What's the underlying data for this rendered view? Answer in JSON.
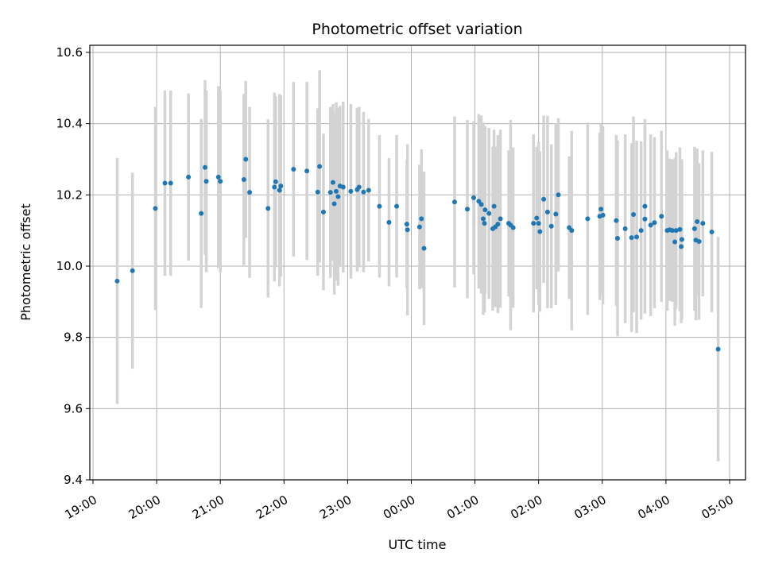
{
  "chart_data": {
    "type": "scatter",
    "title": "Photometric offset variation",
    "xlabel": "UTC time",
    "ylabel": "Photometric offset",
    "xlim": [
      -0.05,
      10.25
    ],
    "ylim": [
      9.4,
      10.62
    ],
    "grid": true,
    "x_unit": "hours since 19:00 UTC",
    "x_ticks": [
      {
        "value": 0,
        "label": "19:00"
      },
      {
        "value": 1,
        "label": "20:00"
      },
      {
        "value": 2,
        "label": "21:00"
      },
      {
        "value": 3,
        "label": "22:00"
      },
      {
        "value": 4,
        "label": "23:00"
      },
      {
        "value": 5,
        "label": "00:00"
      },
      {
        "value": 6,
        "label": "01:00"
      },
      {
        "value": 7,
        "label": "02:00"
      },
      {
        "value": 8,
        "label": "03:00"
      },
      {
        "value": 9,
        "label": "04:00"
      },
      {
        "value": 10,
        "label": "05:00"
      }
    ],
    "y_ticks": [
      {
        "value": 9.4,
        "label": "9.4"
      },
      {
        "value": 9.6,
        "label": "9.6"
      },
      {
        "value": 9.8,
        "label": "9.8"
      },
      {
        "value": 10.0,
        "label": "10.0"
      },
      {
        "value": 10.2,
        "label": "10.2"
      },
      {
        "value": 10.4,
        "label": "10.4"
      },
      {
        "value": 10.6,
        "label": "10.6"
      }
    ],
    "colors": {
      "points": "#1f77b4",
      "errorbars": "#d3d3d3",
      "grid": "#b0b0b0",
      "axes": "#000000"
    },
    "series": [
      {
        "name": "offset",
        "points": [
          [
            0.38,
            9.958,
            0.345
          ],
          [
            0.62,
            9.987,
            0.275
          ],
          [
            0.98,
            10.162,
            0.285
          ],
          [
            1.13,
            10.233,
            0.26
          ],
          [
            1.22,
            10.233,
            0.26
          ],
          [
            1.5,
            10.25,
            0.235
          ],
          [
            1.7,
            10.148,
            0.265
          ],
          [
            1.76,
            10.277,
            0.245
          ],
          [
            1.78,
            10.238,
            0.255
          ],
          [
            1.97,
            10.25,
            0.255
          ],
          [
            2.0,
            10.238,
            0.255
          ],
          [
            2.37,
            10.243,
            0.24
          ],
          [
            2.4,
            10.3,
            0.22
          ],
          [
            2.46,
            10.207,
            0.24
          ],
          [
            2.75,
            10.162,
            0.25
          ],
          [
            2.85,
            10.222,
            0.265
          ],
          [
            2.87,
            10.237,
            0.24
          ],
          [
            2.93,
            10.213,
            0.27
          ],
          [
            2.95,
            10.225,
            0.255
          ],
          [
            3.15,
            10.272,
            0.245
          ],
          [
            3.36,
            10.267,
            0.25
          ],
          [
            3.53,
            10.208,
            0.235
          ],
          [
            3.56,
            10.28,
            0.27
          ],
          [
            3.62,
            10.152,
            0.22
          ],
          [
            3.73,
            10.207,
            0.24
          ],
          [
            3.77,
            10.235,
            0.22
          ],
          [
            3.79,
            10.175,
            0.255
          ],
          [
            3.82,
            10.21,
            0.25
          ],
          [
            3.85,
            10.195,
            0.25
          ],
          [
            3.88,
            10.225,
            0.225
          ],
          [
            3.93,
            10.222,
            0.24
          ],
          [
            4.05,
            10.21,
            0.245
          ],
          [
            4.15,
            10.215,
            0.23
          ],
          [
            4.18,
            10.222,
            0.225
          ],
          [
            4.25,
            10.208,
            0.225
          ],
          [
            4.33,
            10.213,
            0.2
          ],
          [
            4.5,
            10.168,
            0.2
          ],
          [
            4.65,
            10.123,
            0.18
          ],
          [
            4.77,
            10.168,
            0.2
          ],
          [
            4.93,
            10.118,
            0.18
          ],
          [
            4.94,
            10.102,
            0.24
          ],
          [
            5.13,
            10.11,
            0.175
          ],
          [
            5.16,
            10.133,
            0.195
          ],
          [
            5.2,
            10.05,
            0.215
          ],
          [
            5.68,
            10.18,
            0.24
          ],
          [
            5.88,
            10.16,
            0.25
          ],
          [
            5.98,
            10.192,
            0.215
          ],
          [
            6.06,
            10.182,
            0.245
          ],
          [
            6.1,
            10.173,
            0.25
          ],
          [
            6.13,
            10.133,
            0.27
          ],
          [
            6.16,
            10.158,
            0.235
          ],
          [
            6.15,
            10.12,
            0.25
          ],
          [
            6.22,
            10.148,
            0.24
          ],
          [
            6.28,
            10.105,
            0.23
          ],
          [
            6.3,
            10.168,
            0.215
          ],
          [
            6.32,
            10.11,
            0.225
          ],
          [
            6.36,
            10.118,
            0.25
          ],
          [
            6.4,
            10.133,
            0.25
          ],
          [
            6.53,
            10.12,
            0.205
          ],
          [
            6.56,
            10.115,
            0.295
          ],
          [
            6.6,
            10.108,
            0.225
          ],
          [
            6.92,
            10.12,
            0.25
          ],
          [
            6.97,
            10.135,
            0.2
          ],
          [
            7.0,
            10.12,
            0.23
          ],
          [
            7.02,
            10.097,
            0.225
          ],
          [
            7.08,
            10.188,
            0.235
          ],
          [
            7.14,
            10.152,
            0.27
          ],
          [
            7.2,
            10.112,
            0.23
          ],
          [
            7.27,
            10.146,
            0.255
          ],
          [
            7.31,
            10.2,
            0.215
          ],
          [
            7.48,
            10.108,
            0.2
          ],
          [
            7.52,
            10.1,
            0.28
          ],
          [
            7.77,
            10.133,
            0.27
          ],
          [
            7.96,
            10.14,
            0.235
          ],
          [
            7.98,
            10.16,
            0.24
          ],
          [
            8.01,
            10.143,
            0.25
          ],
          [
            8.22,
            10.128,
            0.24
          ],
          [
            8.24,
            10.078,
            0.275
          ],
          [
            8.36,
            10.105,
            0.265
          ],
          [
            8.46,
            10.08,
            0.265
          ],
          [
            8.49,
            10.145,
            0.275
          ],
          [
            8.54,
            10.082,
            0.27
          ],
          [
            8.61,
            10.1,
            0.25
          ],
          [
            8.67,
            10.132,
            0.265
          ],
          [
            8.67,
            10.168,
            0.245
          ],
          [
            8.76,
            10.115,
            0.255
          ],
          [
            8.82,
            10.122,
            0.24
          ],
          [
            8.93,
            10.14,
            0.24
          ],
          [
            9.02,
            10.1,
            0.225
          ],
          [
            9.06,
            10.102,
            0.2
          ],
          [
            9.1,
            10.1,
            0.2
          ],
          [
            9.14,
            10.068,
            0.235
          ],
          [
            9.16,
            10.1,
            0.22
          ],
          [
            9.22,
            10.103,
            0.23
          ],
          [
            9.24,
            10.055,
            0.215
          ],
          [
            9.25,
            10.075,
            0.225
          ],
          [
            9.45,
            10.105,
            0.23
          ],
          [
            9.47,
            10.073,
            0.225
          ],
          [
            9.49,
            10.125,
            0.205
          ],
          [
            9.52,
            10.069,
            0.22
          ],
          [
            9.58,
            10.12,
            0.205
          ],
          [
            9.72,
            10.096,
            0.225
          ],
          [
            9.82,
            9.767,
            0.315
          ]
        ]
      }
    ]
  }
}
